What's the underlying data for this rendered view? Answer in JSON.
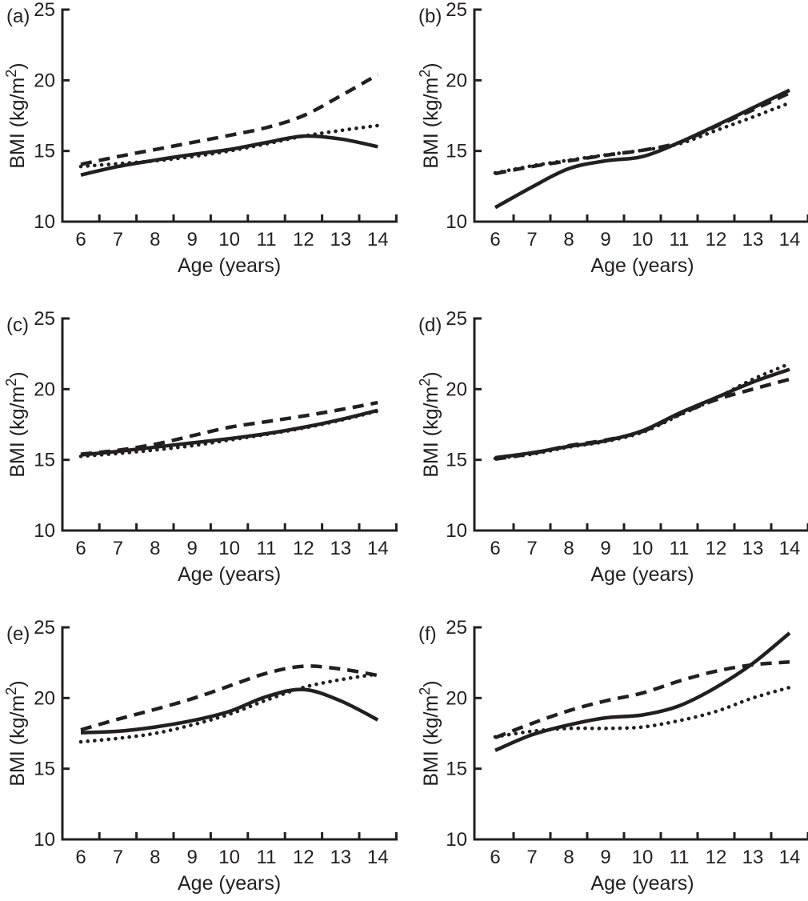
{
  "figure": {
    "background": "#ffffff",
    "ink_color": "#231f20",
    "x_label": "Age (years)",
    "y_label_prefix": "BMI (kg/m",
    "y_label_sup": "2",
    "y_label_suffix": ")",
    "x_tick_labels": [
      6,
      7,
      8,
      9,
      10,
      11,
      12,
      13,
      14
    ],
    "y_tick_labels": [
      10,
      15,
      20,
      25
    ]
  },
  "chart_data": [
    {
      "panel": "(a)",
      "type": "line",
      "title": "",
      "xlabel": "Age (years)",
      "ylabel": "BMI (kg/m2)",
      "xlim": [
        5.5,
        14.55
      ],
      "ylim": [
        10,
        25
      ],
      "x_ticks": [
        6.5,
        7.5,
        8.5,
        9.5,
        10.5,
        11.5,
        12.5,
        13.5,
        14.5
      ],
      "y_ticks": [
        15,
        20,
        25
      ],
      "grid": false,
      "legend": "none",
      "x": [
        6,
        7,
        8,
        9,
        10,
        11,
        12,
        13,
        14
      ],
      "series": [
        {
          "name": "solid",
          "style": "solid",
          "y": [
            13.3,
            13.9,
            14.35,
            14.75,
            15.1,
            15.6,
            16.05,
            15.85,
            15.3
          ]
        },
        {
          "name": "dashed",
          "style": "dashed",
          "y": [
            14.05,
            14.6,
            15.1,
            15.6,
            16.1,
            16.65,
            17.5,
            18.9,
            20.4
          ]
        },
        {
          "name": "dotted",
          "style": "dotted",
          "y": [
            13.9,
            14.1,
            14.3,
            14.6,
            15.0,
            15.5,
            16.05,
            16.45,
            16.8
          ]
        }
      ]
    },
    {
      "panel": "(b)",
      "type": "line",
      "title": "",
      "xlabel": "Age (years)",
      "ylabel": "BMI (kg/m2)",
      "xlim": [
        5.5,
        14.55
      ],
      "ylim": [
        10,
        25
      ],
      "x_ticks": [
        6.5,
        7.5,
        8.5,
        9.5,
        10.5,
        11.5,
        12.5,
        13.5,
        14.5
      ],
      "y_ticks": [
        15,
        20,
        25
      ],
      "grid": false,
      "legend": "none",
      "x": [
        6,
        7,
        8,
        9,
        10,
        11,
        12,
        13,
        14
      ],
      "series": [
        {
          "name": "solid",
          "style": "solid",
          "y": [
            11.0,
            12.45,
            13.75,
            14.3,
            14.6,
            15.6,
            16.8,
            18.05,
            19.3
          ]
        },
        {
          "name": "dashed",
          "style": "dashed",
          "y": [
            13.4,
            13.9,
            14.3,
            14.7,
            15.05,
            15.6,
            16.75,
            17.9,
            19.1
          ]
        },
        {
          "name": "dotted",
          "style": "dotted",
          "y": [
            13.45,
            13.95,
            14.35,
            14.72,
            15.05,
            15.5,
            16.45,
            17.4,
            18.4
          ]
        }
      ]
    },
    {
      "panel": "(c)",
      "type": "line",
      "title": "",
      "xlabel": "Age (years)",
      "ylabel": "BMI (kg/m2)",
      "xlim": [
        5.5,
        14.55
      ],
      "ylim": [
        10,
        25
      ],
      "x_ticks": [
        6.5,
        7.5,
        8.5,
        9.5,
        10.5,
        11.5,
        12.5,
        13.5,
        14.5
      ],
      "y_ticks": [
        15,
        20,
        25
      ],
      "grid": false,
      "legend": "none",
      "x": [
        6,
        7,
        8,
        9,
        10,
        11,
        12,
        13,
        14
      ],
      "series": [
        {
          "name": "solid",
          "style": "solid",
          "y": [
            15.35,
            15.6,
            15.9,
            16.2,
            16.5,
            16.85,
            17.3,
            17.85,
            18.5
          ]
        },
        {
          "name": "dashed",
          "style": "dashed",
          "y": [
            15.4,
            15.68,
            16.1,
            16.7,
            17.3,
            17.7,
            18.1,
            18.55,
            19.05
          ]
        },
        {
          "name": "dotted",
          "style": "dotted",
          "y": [
            15.25,
            15.45,
            15.7,
            16.0,
            16.4,
            16.8,
            17.25,
            17.8,
            18.45
          ]
        }
      ]
    },
    {
      "panel": "(d)",
      "type": "line",
      "title": "",
      "xlabel": "Age (years)",
      "ylabel": "BMI (kg/m2)",
      "xlim": [
        5.5,
        14.55
      ],
      "ylim": [
        10,
        25
      ],
      "x_ticks": [
        6.5,
        7.5,
        8.5,
        9.5,
        10.5,
        11.5,
        12.5,
        13.5,
        14.5
      ],
      "y_ticks": [
        15,
        20,
        25
      ],
      "grid": false,
      "legend": "none",
      "x": [
        6,
        7,
        8,
        9,
        10,
        11,
        12,
        13,
        14
      ],
      "series": [
        {
          "name": "solid",
          "style": "solid",
          "y": [
            15.15,
            15.5,
            15.95,
            16.35,
            17.05,
            18.3,
            19.4,
            20.5,
            21.4
          ]
        },
        {
          "name": "dashed",
          "style": "dashed",
          "y": [
            15.05,
            15.45,
            16.0,
            16.4,
            17.0,
            18.2,
            19.25,
            20.0,
            20.7
          ]
        },
        {
          "name": "dotted",
          "style": "dotted",
          "y": [
            15.1,
            15.4,
            15.9,
            16.3,
            16.95,
            18.15,
            19.35,
            20.7,
            21.8
          ]
        }
      ]
    },
    {
      "panel": "(e)",
      "type": "line",
      "title": "",
      "xlabel": "Age (years)",
      "ylabel": "BMI (kg/m2)",
      "xlim": [
        5.5,
        14.55
      ],
      "ylim": [
        10,
        25
      ],
      "x_ticks": [
        6.5,
        7.5,
        8.5,
        9.5,
        10.5,
        11.5,
        12.5,
        13.5,
        14.5
      ],
      "y_ticks": [
        15,
        20,
        25
      ],
      "grid": false,
      "legend": "none",
      "x": [
        6,
        7,
        8,
        9,
        10,
        11,
        12,
        13,
        14
      ],
      "series": [
        {
          "name": "solid",
          "style": "solid",
          "y": [
            17.55,
            17.65,
            17.95,
            18.4,
            19.05,
            20.1,
            20.6,
            19.8,
            18.45
          ]
        },
        {
          "name": "dashed",
          "style": "dashed",
          "y": [
            17.75,
            18.5,
            19.2,
            19.95,
            20.85,
            21.75,
            22.25,
            22.05,
            21.6
          ]
        },
        {
          "name": "dotted",
          "style": "dotted",
          "y": [
            16.9,
            17.15,
            17.5,
            18.1,
            18.85,
            19.85,
            20.75,
            21.3,
            21.7
          ]
        }
      ]
    },
    {
      "panel": "(f)",
      "type": "line",
      "title": "",
      "xlabel": "Age (years)",
      "ylabel": "BMI (kg/m2)",
      "xlim": [
        5.5,
        14.55
      ],
      "ylim": [
        10,
        25
      ],
      "x_ticks": [
        6.5,
        7.5,
        8.5,
        9.5,
        10.5,
        11.5,
        12.5,
        13.5,
        14.5
      ],
      "y_ticks": [
        15,
        20,
        25
      ],
      "grid": false,
      "legend": "none",
      "x": [
        6,
        7,
        8,
        9,
        10,
        11,
        12,
        13,
        14
      ],
      "series": [
        {
          "name": "solid",
          "style": "solid",
          "y": [
            16.3,
            17.4,
            18.1,
            18.6,
            18.8,
            19.45,
            20.75,
            22.45,
            24.6
          ]
        },
        {
          "name": "dashed",
          "style": "dashed",
          "y": [
            17.2,
            18.2,
            19.1,
            19.8,
            20.35,
            21.2,
            21.9,
            22.35,
            22.55
          ]
        },
        {
          "name": "dotted",
          "style": "dotted",
          "y": [
            17.25,
            17.65,
            17.85,
            17.85,
            17.95,
            18.4,
            19.05,
            20.0,
            20.75
          ]
        }
      ]
    }
  ]
}
